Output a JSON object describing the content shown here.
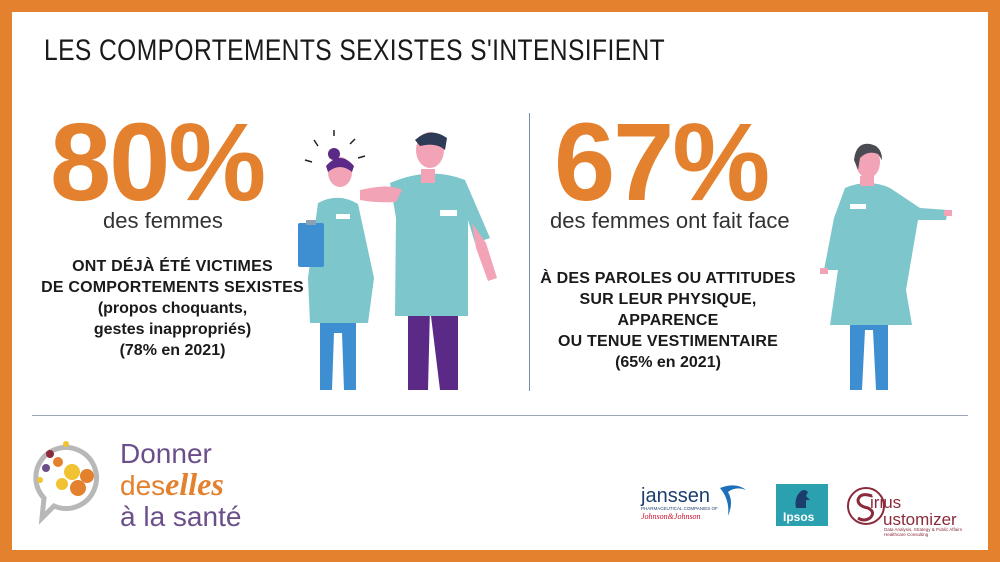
{
  "title": "LES COMPORTEMENTS SEXISTES S'INTENSIFIENT",
  "stat_left": {
    "value": "80%",
    "subtitle": "des femmes",
    "caps_line1": "ONT DÉJÀ ÉTÉ VICTIMES",
    "caps_line2": "DE COMPORTEMENTS SEXISTES",
    "line3": "(propos choquants,",
    "line4": "gestes inappropriés)",
    "line5": "(78% en 2021)"
  },
  "stat_right": {
    "value": "67%",
    "subtitle": "des femmes ont fait face",
    "caps_line1": "À DES PAROLES OU ATTITUDES",
    "caps_line2": "SUR LEUR PHYSIQUE, APPARENCE",
    "caps_line3": "OU TENUE VESTIMENTAIRE",
    "line4": "(65% en 2021)"
  },
  "brand": {
    "line1": "Donner",
    "line2_prefix": "des",
    "line2_script": "elles",
    "line3": "à la santé"
  },
  "partners": {
    "janssen": "janssen",
    "janssen_small": "PHARMACEUTICAL COMPANIES OF",
    "janssen_jnj": "Johnson&Johnson",
    "ipsos": "Ipsos",
    "sirius_line1": "irius",
    "sirius_line2": "ustomizer",
    "sirius_tag": "Data Analysis, Strategy & Public Affairs Healthcare Consulting"
  },
  "colors": {
    "accent": "#e3812f",
    "scrub": "#7cc6cc",
    "purple": "#5b2a86",
    "skin": "#f2a3b5"
  }
}
